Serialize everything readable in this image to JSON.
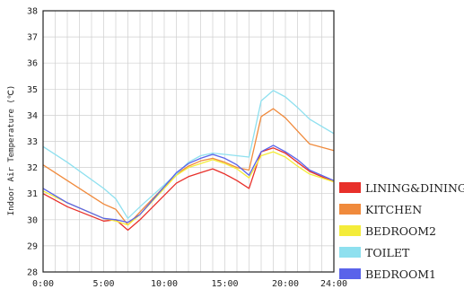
{
  "chart_data": {
    "type": "line",
    "title": "",
    "xlabel": "",
    "ylabel": "Indoor Air Temperature (℃)",
    "xlim": [
      0,
      24
    ],
    "ylim": [
      28,
      38
    ],
    "x_ticks": [
      0,
      5,
      10,
      15,
      20,
      24
    ],
    "x_tick_labels": [
      "0:00",
      "5:00",
      "10:00",
      "15:00",
      "20:00",
      "24:00"
    ],
    "y_ticks": [
      28,
      29,
      30,
      31,
      32,
      33,
      34,
      35,
      36,
      37,
      38
    ],
    "y_tick_labels": [
      "28",
      "29",
      "30",
      "31",
      "32",
      "33",
      "34",
      "35",
      "36",
      "37",
      "38"
    ],
    "grid": true,
    "legend_position": "right",
    "x": [
      0,
      2,
      5,
      6,
      7,
      8,
      11,
      12,
      13,
      14,
      15,
      16,
      17,
      18,
      19,
      20,
      21,
      22,
      24
    ],
    "series": [
      {
        "name": "LINING&DINING",
        "color": "#e8302a",
        "values": [
          31.0,
          30.5,
          29.95,
          30.0,
          29.6,
          30.0,
          31.4,
          31.65,
          31.8,
          31.95,
          31.75,
          31.5,
          31.2,
          32.6,
          32.75,
          32.55,
          32.2,
          31.85,
          31.45
        ]
      },
      {
        "name": "KITCHEN",
        "color": "#f08a3c",
        "values": [
          32.1,
          31.5,
          30.6,
          30.4,
          29.8,
          30.3,
          31.75,
          32.05,
          32.25,
          32.35,
          32.2,
          32.0,
          31.9,
          33.95,
          34.25,
          33.9,
          33.4,
          32.9,
          32.65
        ]
      },
      {
        "name": "BEDROOM2",
        "color": "#f4ec3a",
        "values": [
          31.1,
          30.65,
          30.05,
          29.95,
          29.8,
          30.2,
          31.7,
          32.0,
          32.15,
          32.3,
          32.15,
          31.95,
          31.6,
          32.45,
          32.6,
          32.4,
          32.05,
          31.75,
          31.45
        ]
      },
      {
        "name": "TOILET",
        "color": "#8ee0ef",
        "values": [
          32.8,
          32.2,
          31.2,
          30.8,
          30.05,
          30.5,
          31.75,
          32.2,
          32.45,
          32.55,
          32.5,
          32.45,
          32.4,
          34.55,
          34.95,
          34.7,
          34.3,
          33.85,
          33.3
        ]
      },
      {
        "name": "BEDROOM1",
        "color": "#5a63ea",
        "values": [
          31.2,
          30.65,
          30.05,
          30.0,
          29.9,
          30.2,
          31.8,
          32.15,
          32.35,
          32.5,
          32.35,
          32.1,
          31.7,
          32.6,
          32.85,
          32.6,
          32.3,
          31.9,
          31.5
        ]
      }
    ]
  }
}
